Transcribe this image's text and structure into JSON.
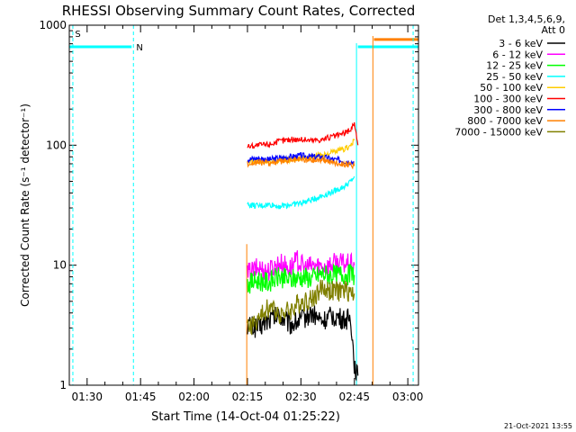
{
  "chart_data": {
    "type": "line",
    "title": "RHESSI Observing Summary Count Rates, Corrected",
    "xlabel": "Start Time (14-Oct-04 01:25:22)",
    "ylabel": "Corrected Count Rate (s⁻¹ detector⁻¹)",
    "yscale": "log",
    "ylim": [
      1,
      1000
    ],
    "xlim_minutes": [
      0,
      98
    ],
    "x_ticks": [
      {
        "t": 5,
        "label": "01:30"
      },
      {
        "t": 20,
        "label": "01:45"
      },
      {
        "t": 35,
        "label": "02:00"
      },
      {
        "t": 50,
        "label": "02:15"
      },
      {
        "t": 65,
        "label": "02:30"
      },
      {
        "t": 80,
        "label": "02:45"
      },
      {
        "t": 95,
        "label": "03:00"
      }
    ],
    "y_ticks": [
      {
        "v": 1,
        "label": "1"
      },
      {
        "v": 10,
        "label": "10"
      },
      {
        "v": 100,
        "label": "100"
      },
      {
        "v": 1000,
        "label": "1000"
      }
    ],
    "legend_header": [
      "Det 1,3,4,5,6,9,",
      "Att 0"
    ],
    "series": [
      {
        "name": "3 - 6 keV",
        "color": "#000000",
        "points": [
          [
            50,
            3.2
          ],
          [
            53,
            3.0
          ],
          [
            56,
            3.5
          ],
          [
            59,
            3.8
          ],
          [
            62,
            3.2
          ],
          [
            65,
            3.5
          ],
          [
            68,
            4.0
          ],
          [
            71,
            3.4
          ],
          [
            74,
            3.8
          ],
          [
            77,
            3.5
          ],
          [
            79,
            3.6
          ],
          [
            80,
            1.5
          ],
          [
            81,
            1.2
          ]
        ]
      },
      {
        "name": "6 - 12 keV",
        "color": "#ff00ff",
        "points": [
          [
            50,
            8.5
          ],
          [
            53,
            9.5
          ],
          [
            56,
            9.0
          ],
          [
            59,
            10.5
          ],
          [
            62,
            9.5
          ],
          [
            64,
            11.0
          ],
          [
            66,
            9.5
          ],
          [
            69,
            10.0
          ],
          [
            72,
            9.8
          ],
          [
            75,
            10.5
          ],
          [
            78,
            10.2
          ],
          [
            80,
            10.0
          ]
        ]
      },
      {
        "name": "12 - 25 keV",
        "color": "#00ff00",
        "points": [
          [
            50,
            7.0
          ],
          [
            53,
            7.5
          ],
          [
            56,
            7.2
          ],
          [
            59,
            8.0
          ],
          [
            62,
            7.5
          ],
          [
            65,
            8.0
          ],
          [
            68,
            7.8
          ],
          [
            71,
            8.5
          ],
          [
            74,
            8.2
          ],
          [
            77,
            8.5
          ],
          [
            80,
            8.3
          ]
        ]
      },
      {
        "name": "25 - 50 keV",
        "color": "#00ffff",
        "points": [
          [
            50,
            32
          ],
          [
            53,
            31
          ],
          [
            56,
            32
          ],
          [
            59,
            31
          ],
          [
            62,
            32
          ],
          [
            65,
            33
          ],
          [
            68,
            35
          ],
          [
            71,
            38
          ],
          [
            74,
            41
          ],
          [
            77,
            45
          ],
          [
            79,
            50
          ],
          [
            80,
            55
          ]
        ]
      },
      {
        "name": "50 - 100 keV",
        "color": "#ffcc00",
        "points": [
          [
            50,
            72
          ],
          [
            53,
            74
          ],
          [
            56,
            73
          ],
          [
            59,
            75
          ],
          [
            62,
            76
          ],
          [
            65,
            78
          ],
          [
            68,
            80
          ],
          [
            71,
            83
          ],
          [
            74,
            87
          ],
          [
            77,
            92
          ],
          [
            79,
            100
          ],
          [
            80,
            110
          ]
        ]
      },
      {
        "name": "100 - 300 keV",
        "color": "#ff0000",
        "points": [
          [
            50,
            98
          ],
          [
            53,
            100
          ],
          [
            56,
            102
          ],
          [
            59,
            108
          ],
          [
            62,
            112
          ],
          [
            65,
            112
          ],
          [
            68,
            110
          ],
          [
            71,
            112
          ],
          [
            74,
            118
          ],
          [
            77,
            125
          ],
          [
            79,
            135
          ],
          [
            80,
            155
          ],
          [
            81,
            100
          ]
        ]
      },
      {
        "name": "300 - 800 keV",
        "color": "#0000ff",
        "points": [
          [
            50,
            76
          ],
          [
            53,
            78
          ],
          [
            56,
            76
          ],
          [
            59,
            78
          ],
          [
            62,
            80
          ],
          [
            65,
            82
          ],
          [
            68,
            80
          ],
          [
            71,
            80
          ],
          [
            74,
            76
          ],
          [
            77,
            74
          ],
          [
            80,
            72
          ]
        ]
      },
      {
        "name": "800 - 7000 keV",
        "color": "#ff8000",
        "points": [
          [
            50,
            70
          ],
          [
            53,
            72
          ],
          [
            56,
            71
          ],
          [
            59,
            73
          ],
          [
            62,
            74
          ],
          [
            65,
            76
          ],
          [
            68,
            75
          ],
          [
            71,
            76
          ],
          [
            74,
            72
          ],
          [
            77,
            70
          ],
          [
            79,
            68
          ],
          [
            80,
            67
          ]
        ]
      },
      {
        "name": "7000 - 15000 keV",
        "color": "#808000",
        "points": [
          [
            50,
            3.0
          ],
          [
            53,
            3.5
          ],
          [
            56,
            4.5
          ],
          [
            59,
            4.0
          ],
          [
            62,
            4.2
          ],
          [
            65,
            5.0
          ],
          [
            68,
            5.2
          ],
          [
            71,
            6.5
          ],
          [
            74,
            6.0
          ],
          [
            77,
            6.2
          ],
          [
            79,
            6.0
          ],
          [
            80,
            5.8
          ]
        ]
      }
    ],
    "annotations": {
      "s_label": "S",
      "n_label": "N",
      "timestamp": "21-Oct-2021 13:55"
    }
  }
}
